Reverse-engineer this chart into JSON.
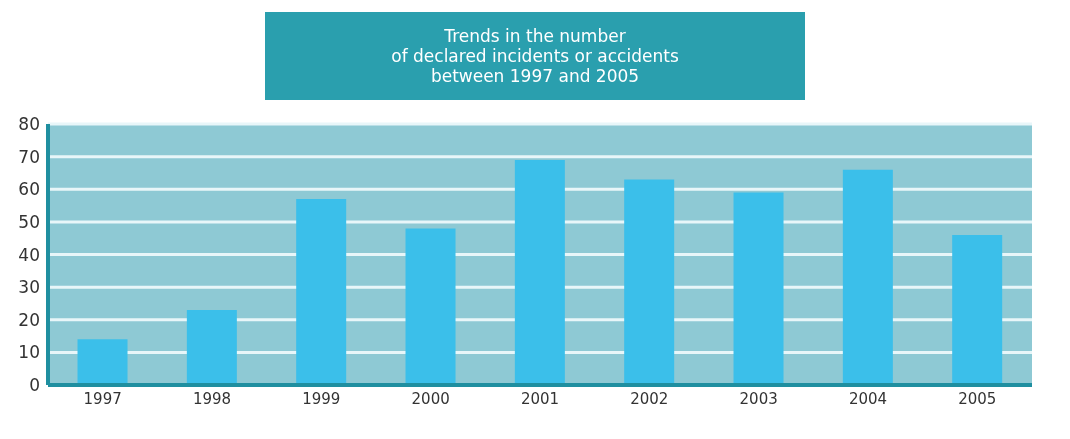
{
  "chart_data": {
    "type": "bar",
    "title": "Trends in the number\nof declared incidents or accidents\nbetween 1997 and 2005",
    "categories": [
      "1997",
      "1998",
      "1999",
      "2000",
      "2001",
      "2002",
      "2003",
      "2004",
      "2005"
    ],
    "values": [
      14,
      23,
      57,
      48,
      69,
      63,
      59,
      66,
      46
    ],
    "color": "#3bbfea",
    "ylim": [
      0,
      80
    ],
    "yticks": [
      0,
      10,
      20,
      30,
      40,
      50,
      60,
      70,
      80
    ],
    "grid": "y"
  }
}
